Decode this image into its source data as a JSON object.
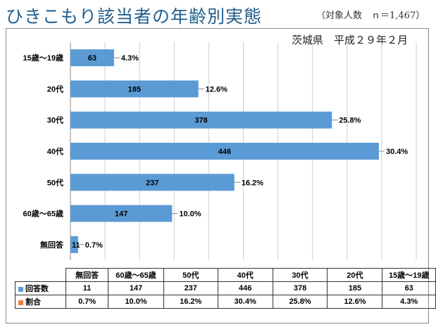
{
  "title": "ひきこもり該当者の年齢別実態",
  "note": "（対象人数　ｎ＝1,467）",
  "subtitle": "茨城県　平成２９年２月",
  "colors": {
    "bar": "#5b9bd5",
    "rate_key": "#ed7d31",
    "title": "#1f5d8c"
  },
  "chart_data": {
    "type": "bar",
    "orientation": "horizontal",
    "categories": [
      "15歳～19歳",
      "20代",
      "30代",
      "40代",
      "50代",
      "60歳～65歳",
      "無回答"
    ],
    "values": [
      63,
      185,
      378,
      446,
      237,
      147,
      11
    ],
    "percent_labels": [
      "4.3%",
      "12.6%",
      "25.8%",
      "30.4%",
      "16.2%",
      "10.0%",
      "0.7%"
    ],
    "xlim": [
      0,
      500
    ],
    "grid": true,
    "series": [
      {
        "name": "回答数",
        "values": [
          63,
          185,
          378,
          446,
          237,
          147,
          11
        ]
      },
      {
        "name": "割合",
        "values": [
          "4.3%",
          "12.6%",
          "25.8%",
          "30.4%",
          "16.2%",
          "10.0%",
          "0.7%"
        ]
      }
    ]
  },
  "table": {
    "columns": [
      "無回答",
      "60歳～65歳",
      "50代",
      "40代",
      "30代",
      "20代",
      "15歳～19歳"
    ],
    "rows": [
      {
        "label": "回答数",
        "values": [
          "11",
          "147",
          "237",
          "446",
          "378",
          "185",
          "63"
        ]
      },
      {
        "label": "割合",
        "values": [
          "0.7%",
          "10.0%",
          "16.2%",
          "30.4%",
          "25.8%",
          "12.6%",
          "4.3%"
        ]
      }
    ]
  }
}
